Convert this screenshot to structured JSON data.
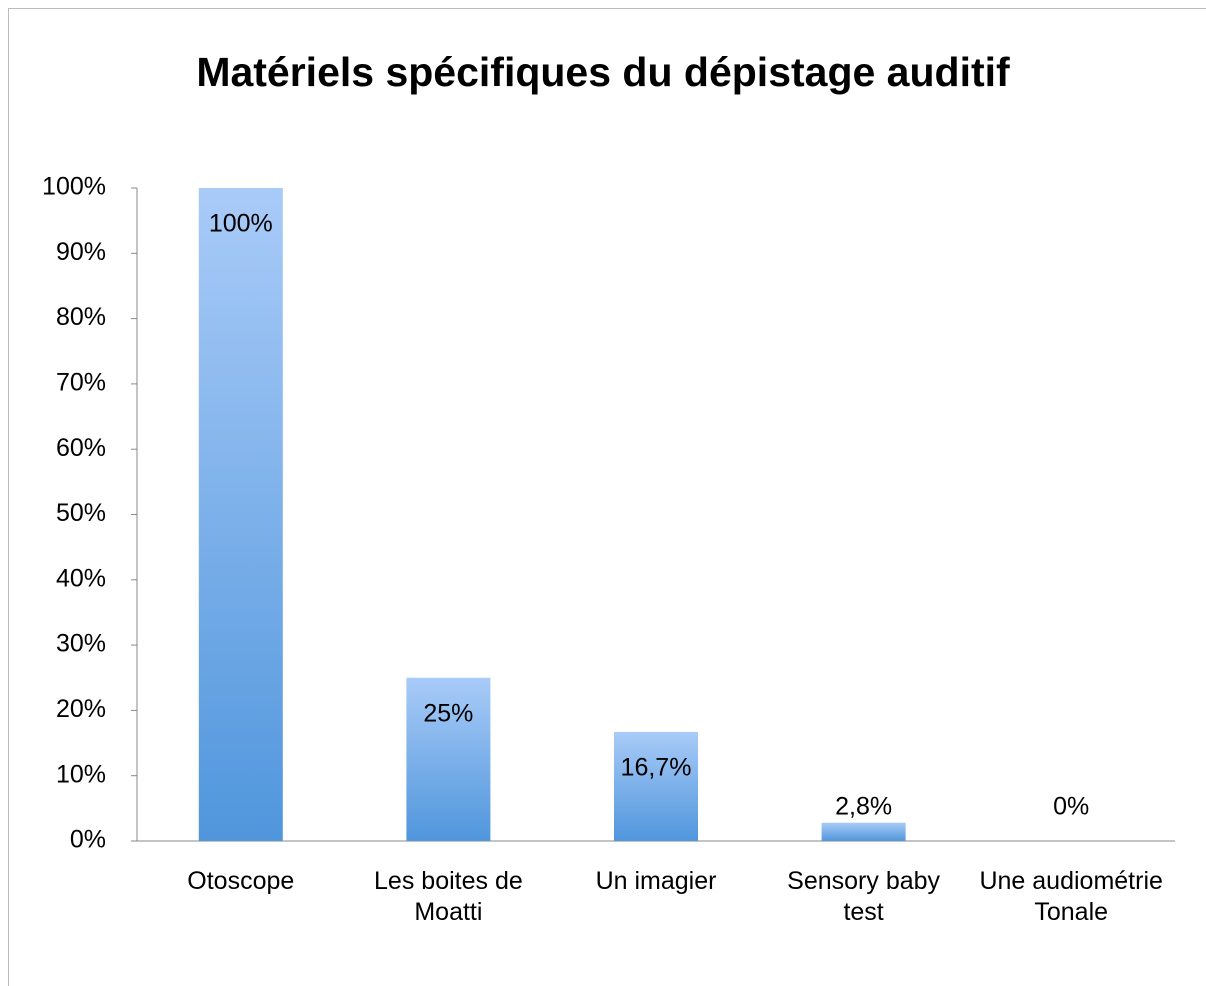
{
  "chart_data": {
    "type": "bar",
    "title": "Matériels spécifiques du dépistage auditif",
    "categories": [
      "Otoscope",
      "Les boites de Moatti",
      "Un imagier",
      "Sensory baby test",
      "Une audiométrie Tonale"
    ],
    "values": [
      100,
      25,
      16.7,
      2.8,
      0
    ],
    "value_labels": [
      "100%",
      "25%",
      "16,7%",
      "2,8%",
      "0%"
    ],
    "color": "#5096dc",
    "ylim": [
      0,
      100
    ],
    "yticks": [
      {
        "value": 0,
        "label": "0%"
      },
      {
        "value": 10,
        "label": "10%"
      },
      {
        "value": 20,
        "label": "20%"
      },
      {
        "value": 30,
        "label": "30%"
      },
      {
        "value": 40,
        "label": "40%"
      },
      {
        "value": 50,
        "label": "50%"
      },
      {
        "value": 60,
        "label": "60%"
      },
      {
        "value": 70,
        "label": "70%"
      },
      {
        "value": 80,
        "label": "80%"
      },
      {
        "value": 90,
        "label": "90%"
      },
      {
        "value": 100,
        "label": "100%"
      }
    ],
    "grid": false
  }
}
